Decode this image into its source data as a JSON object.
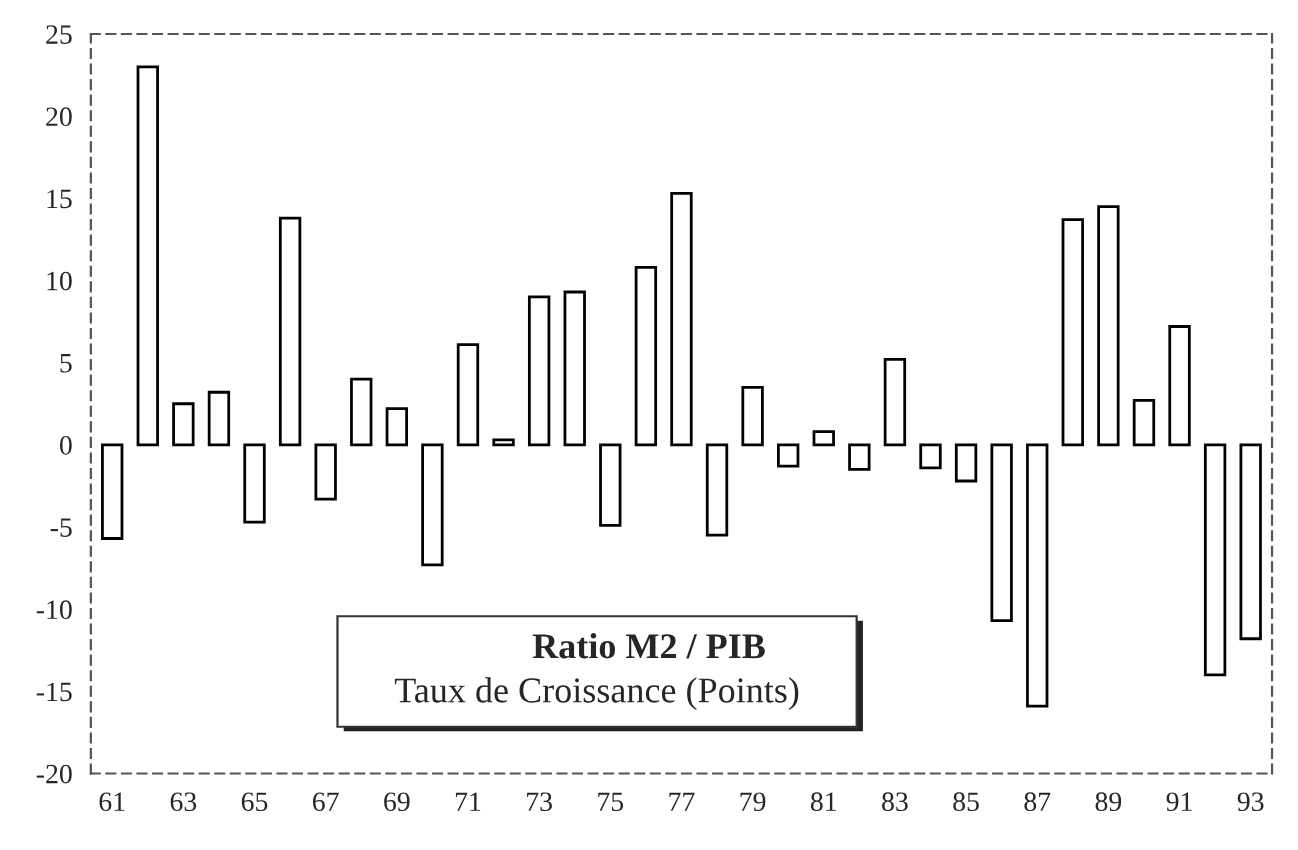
{
  "chart_data": {
    "type": "bar",
    "title": "Ratio M2 / PIB",
    "subtitle": "Taux de Croissance (Points)",
    "categories": [
      "61",
      null,
      "63",
      null,
      "65",
      null,
      "67",
      null,
      "69",
      null,
      "71",
      null,
      "73",
      null,
      "75",
      null,
      "77",
      null,
      "79",
      null,
      "81",
      null,
      "83",
      null,
      "85",
      null,
      "87",
      null,
      "89",
      null,
      "91",
      null,
      "93"
    ],
    "values": [
      -5.7,
      23,
      2.5,
      3.2,
      -4.7,
      13.8,
      -3.3,
      4,
      2.2,
      -7.3,
      6.1,
      0.3,
      9,
      9.3,
      -4.9,
      10.8,
      15.3,
      -5.5,
      3.5,
      -1.3,
      0.8,
      -1.5,
      5.2,
      -1.4,
      -2.2,
      -10.7,
      -15.9,
      13.7,
      14.5,
      2.7,
      7.2,
      -14,
      -11.8
    ],
    "color": "#ffffff",
    "ylim": [
      -20,
      25
    ],
    "yticks": [
      -20,
      -15,
      -10,
      -5,
      0,
      5,
      10,
      15,
      20,
      25
    ],
    "grid": false,
    "legend": false
  }
}
